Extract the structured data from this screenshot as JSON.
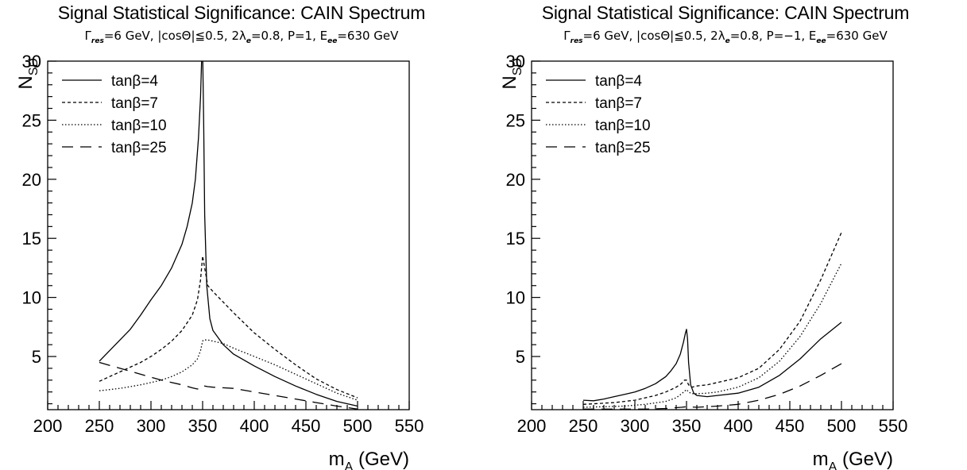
{
  "chart_data": [
    {
      "type": "line",
      "title": "Signal Statistical Significance: CAIN Spectrum",
      "subtitle": {
        "gamma_sym": "Γ",
        "gamma_sub": "res",
        "part1": "=6 GeV, |cosΘ|≦0.5, 2λ",
        "lambda_sub": "e",
        "part2": "=0.8, P=1, E",
        "e_sub": "ee",
        "part3": "=630 GeV"
      },
      "xlabel_main": "m",
      "xlabel_sub": "A",
      "xlabel_unit": " (GeV)",
      "ylabel_main": "N",
      "ylabel_sub": "SD",
      "xlim": [
        200,
        550
      ],
      "ylim": [
        0.5,
        30
      ],
      "xticks": [
        200,
        250,
        300,
        350,
        400,
        450,
        500,
        550
      ],
      "yticks": [
        5,
        10,
        15,
        20,
        25,
        30
      ],
      "legend_position": "top-left",
      "series": [
        {
          "name": "tanβ=4",
          "style": "solid",
          "x": [
            250,
            260,
            270,
            280,
            290,
            300,
            310,
            320,
            330,
            335,
            340,
            343,
            346,
            348,
            349,
            350,
            351,
            352,
            354,
            357,
            360,
            370,
            380,
            400,
            420,
            440,
            460,
            480,
            500
          ],
          "y": [
            4.6,
            5.5,
            6.4,
            7.3,
            8.5,
            9.8,
            11.0,
            12.5,
            14.5,
            16.0,
            18.0,
            20.0,
            23.5,
            27.0,
            30.0,
            31.0,
            25.0,
            17.0,
            11.0,
            8.2,
            7.2,
            6.0,
            5.2,
            4.2,
            3.3,
            2.5,
            1.8,
            1.2,
            0.8
          ]
        },
        {
          "name": "tanβ=7",
          "style": "dashed-fine",
          "x": [
            250,
            260,
            270,
            280,
            290,
            300,
            310,
            320,
            330,
            340,
            345,
            348,
            350,
            352,
            355,
            360,
            370,
            380,
            400,
            420,
            440,
            460,
            480,
            500
          ],
          "y": [
            2.9,
            3.3,
            3.7,
            4.1,
            4.5,
            5.0,
            5.6,
            6.3,
            7.2,
            8.5,
            9.8,
            11.5,
            13.5,
            12.5,
            11.0,
            10.5,
            9.6,
            8.7,
            7.0,
            5.6,
            4.3,
            3.1,
            2.2,
            1.5
          ]
        },
        {
          "name": "tanβ=10",
          "style": "dotted",
          "x": [
            250,
            260,
            270,
            280,
            290,
            300,
            310,
            320,
            330,
            340,
            345,
            348,
            350,
            351,
            355,
            360,
            370,
            380,
            400,
            420,
            440,
            460,
            480,
            500
          ],
          "y": [
            2.1,
            2.2,
            2.3,
            2.45,
            2.6,
            2.8,
            3.0,
            3.3,
            3.7,
            4.3,
            4.8,
            5.5,
            6.3,
            6.4,
            6.4,
            6.3,
            6.1,
            5.7,
            5.0,
            4.3,
            3.5,
            2.7,
            1.9,
            1.3
          ]
        },
        {
          "name": "tanβ=25",
          "style": "long-dash",
          "x": [
            250,
            270,
            290,
            310,
            330,
            340,
            345,
            348,
            350,
            352,
            355,
            360,
            380,
            400,
            420,
            440,
            460,
            480,
            500
          ],
          "y": [
            4.5,
            4.0,
            3.5,
            3.0,
            2.6,
            2.35,
            2.25,
            2.3,
            2.5,
            2.5,
            2.45,
            2.4,
            2.3,
            2.0,
            1.7,
            1.4,
            1.1,
            0.8,
            0.55
          ]
        }
      ]
    },
    {
      "type": "line",
      "title": "Signal Statistical Significance: CAIN Spectrum",
      "subtitle": {
        "gamma_sym": "Γ",
        "gamma_sub": "res",
        "part1": "=6 GeV, |cosΘ|≦0.5, 2λ",
        "lambda_sub": "e",
        "part2": "=0.8, P=−1, E",
        "e_sub": "ee",
        "part3": "=630 GeV"
      },
      "xlabel_main": "m",
      "xlabel_sub": "A",
      "xlabel_unit": " (GeV)",
      "ylabel_main": "N",
      "ylabel_sub": "SD",
      "xlim": [
        200,
        550
      ],
      "ylim": [
        0.5,
        30
      ],
      "xticks": [
        200,
        250,
        300,
        350,
        400,
        450,
        500,
        550
      ],
      "yticks": [
        5,
        10,
        15,
        20,
        25,
        30
      ],
      "legend_position": "top-left",
      "series": [
        {
          "name": "tanβ=4",
          "style": "solid",
          "x": [
            250,
            260,
            270,
            280,
            290,
            300,
            310,
            320,
            330,
            335,
            340,
            344,
            347,
            349,
            350,
            351,
            352,
            354,
            357,
            360,
            370,
            380,
            400,
            420,
            440,
            460,
            480,
            500
          ],
          "y": [
            1.3,
            1.25,
            1.4,
            1.6,
            1.8,
            2.0,
            2.3,
            2.7,
            3.3,
            3.8,
            4.4,
            5.2,
            6.2,
            7.0,
            7.3,
            6.5,
            4.5,
            2.6,
            1.9,
            1.7,
            1.6,
            1.7,
            1.9,
            2.4,
            3.4,
            4.8,
            6.5,
            7.9
          ]
        },
        {
          "name": "tanβ=7",
          "style": "dashed-fine",
          "x": [
            250,
            260,
            270,
            280,
            290,
            300,
            310,
            320,
            330,
            340,
            345,
            348,
            350,
            352,
            355,
            360,
            370,
            380,
            400,
            420,
            440,
            460,
            480,
            500
          ],
          "y": [
            0.95,
            1.0,
            1.05,
            1.1,
            1.2,
            1.3,
            1.5,
            1.7,
            2.0,
            2.4,
            2.7,
            3.0,
            3.0,
            2.6,
            2.4,
            2.5,
            2.6,
            2.8,
            3.2,
            4.0,
            5.6,
            8.0,
            11.5,
            15.5
          ]
        },
        {
          "name": "tanβ=10",
          "style": "dotted",
          "x": [
            250,
            270,
            290,
            310,
            330,
            340,
            346,
            350,
            352,
            355,
            360,
            370,
            380,
            400,
            420,
            440,
            460,
            480,
            500
          ],
          "y": [
            0.7,
            0.75,
            0.8,
            0.95,
            1.2,
            1.5,
            1.9,
            2.2,
            2.0,
            1.85,
            1.85,
            1.9,
            2.0,
            2.4,
            3.2,
            4.6,
            6.7,
            9.5,
            12.9
          ]
        },
        {
          "name": "tanβ=25",
          "style": "long-dash",
          "x": [
            250,
            270,
            290,
            310,
            330,
            345,
            350,
            355,
            360,
            380,
            400,
            420,
            440,
            460,
            480,
            500
          ],
          "y": [
            0.55,
            0.55,
            0.55,
            0.55,
            0.6,
            0.7,
            0.75,
            0.72,
            0.7,
            0.8,
            0.95,
            1.3,
            1.8,
            2.5,
            3.4,
            4.4
          ]
        }
      ]
    }
  ]
}
